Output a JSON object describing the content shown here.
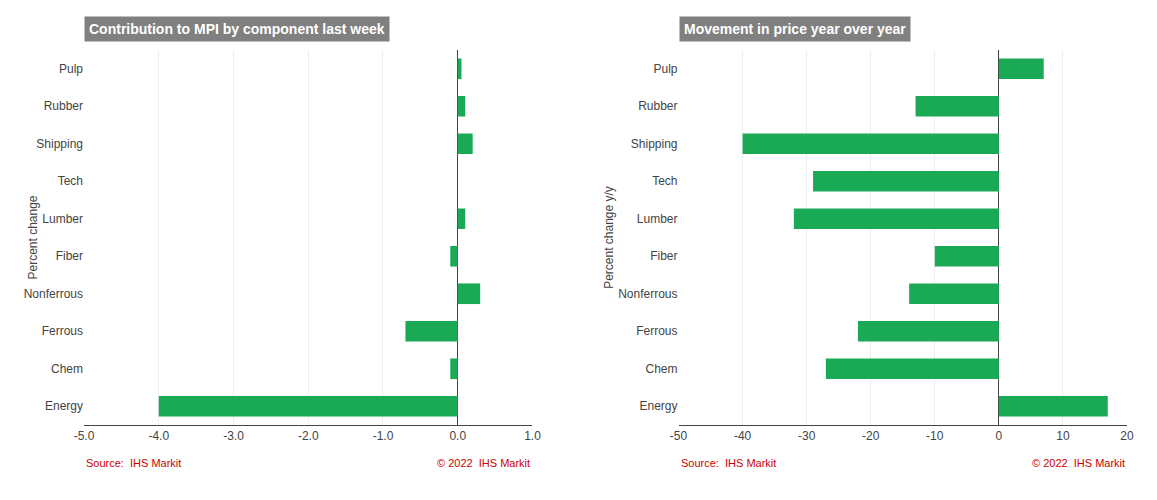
{
  "chart_data": [
    {
      "type": "bar",
      "orientation": "horizontal",
      "title": "Contribution to MPI by component last week",
      "ylabel": "Percent change",
      "categories": [
        "Energy",
        "Chem",
        "Ferrous",
        "Nonferrous",
        "Fiber",
        "Lumber",
        "Tech",
        "Shipping",
        "Rubber",
        "Pulp"
      ],
      "values": [
        -4.0,
        -0.1,
        -0.7,
        0.3,
        -0.1,
        0.1,
        0.0,
        0.2,
        0.1,
        0.05
      ],
      "color": "#1aaa55",
      "xlim": [
        -5.0,
        1.0
      ],
      "xticks": [
        {
          "value": -5.0,
          "label": "-5.0"
        },
        {
          "value": -4.0,
          "label": "-4.0"
        },
        {
          "value": -3.0,
          "label": "-3.0"
        },
        {
          "value": -2.0,
          "label": "-2.0"
        },
        {
          "value": -1.0,
          "label": "-1.0"
        },
        {
          "value": 0.0,
          "label": "0.0"
        },
        {
          "value": 1.0,
          "label": "1.0"
        }
      ],
      "grid": true,
      "annotations": [
        {
          "text": "Source:  IHS Markit",
          "color": "#cc0000"
        },
        {
          "text": "© 2022  IHS Markit",
          "color": "#cc0000"
        }
      ]
    },
    {
      "type": "bar",
      "orientation": "horizontal",
      "title": "Movement in price year over year",
      "ylabel": "Percent change y/y",
      "categories": [
        "Energy",
        "Chem",
        "Ferrous",
        "Nonferrous",
        "Fiber",
        "Lumber",
        "Tech",
        "Shipping",
        "Rubber",
        "Pulp"
      ],
      "values": [
        17.0,
        -27.0,
        -22.0,
        -14.0,
        -10.0,
        -32.0,
        -29.0,
        -40.0,
        -13.0,
        7.0
      ],
      "color": "#1aaa55",
      "xlim": [
        -50,
        20
      ],
      "xticks": [
        -50,
        -40,
        -30,
        -20,
        -10,
        0,
        10,
        20
      ],
      "grid": true,
      "annotations": [
        {
          "text": "Source:  IHS Markit",
          "color": "#cc0000"
        },
        {
          "text": "© 2022  IHS Markit",
          "color": "#cc0000"
        }
      ]
    }
  ]
}
